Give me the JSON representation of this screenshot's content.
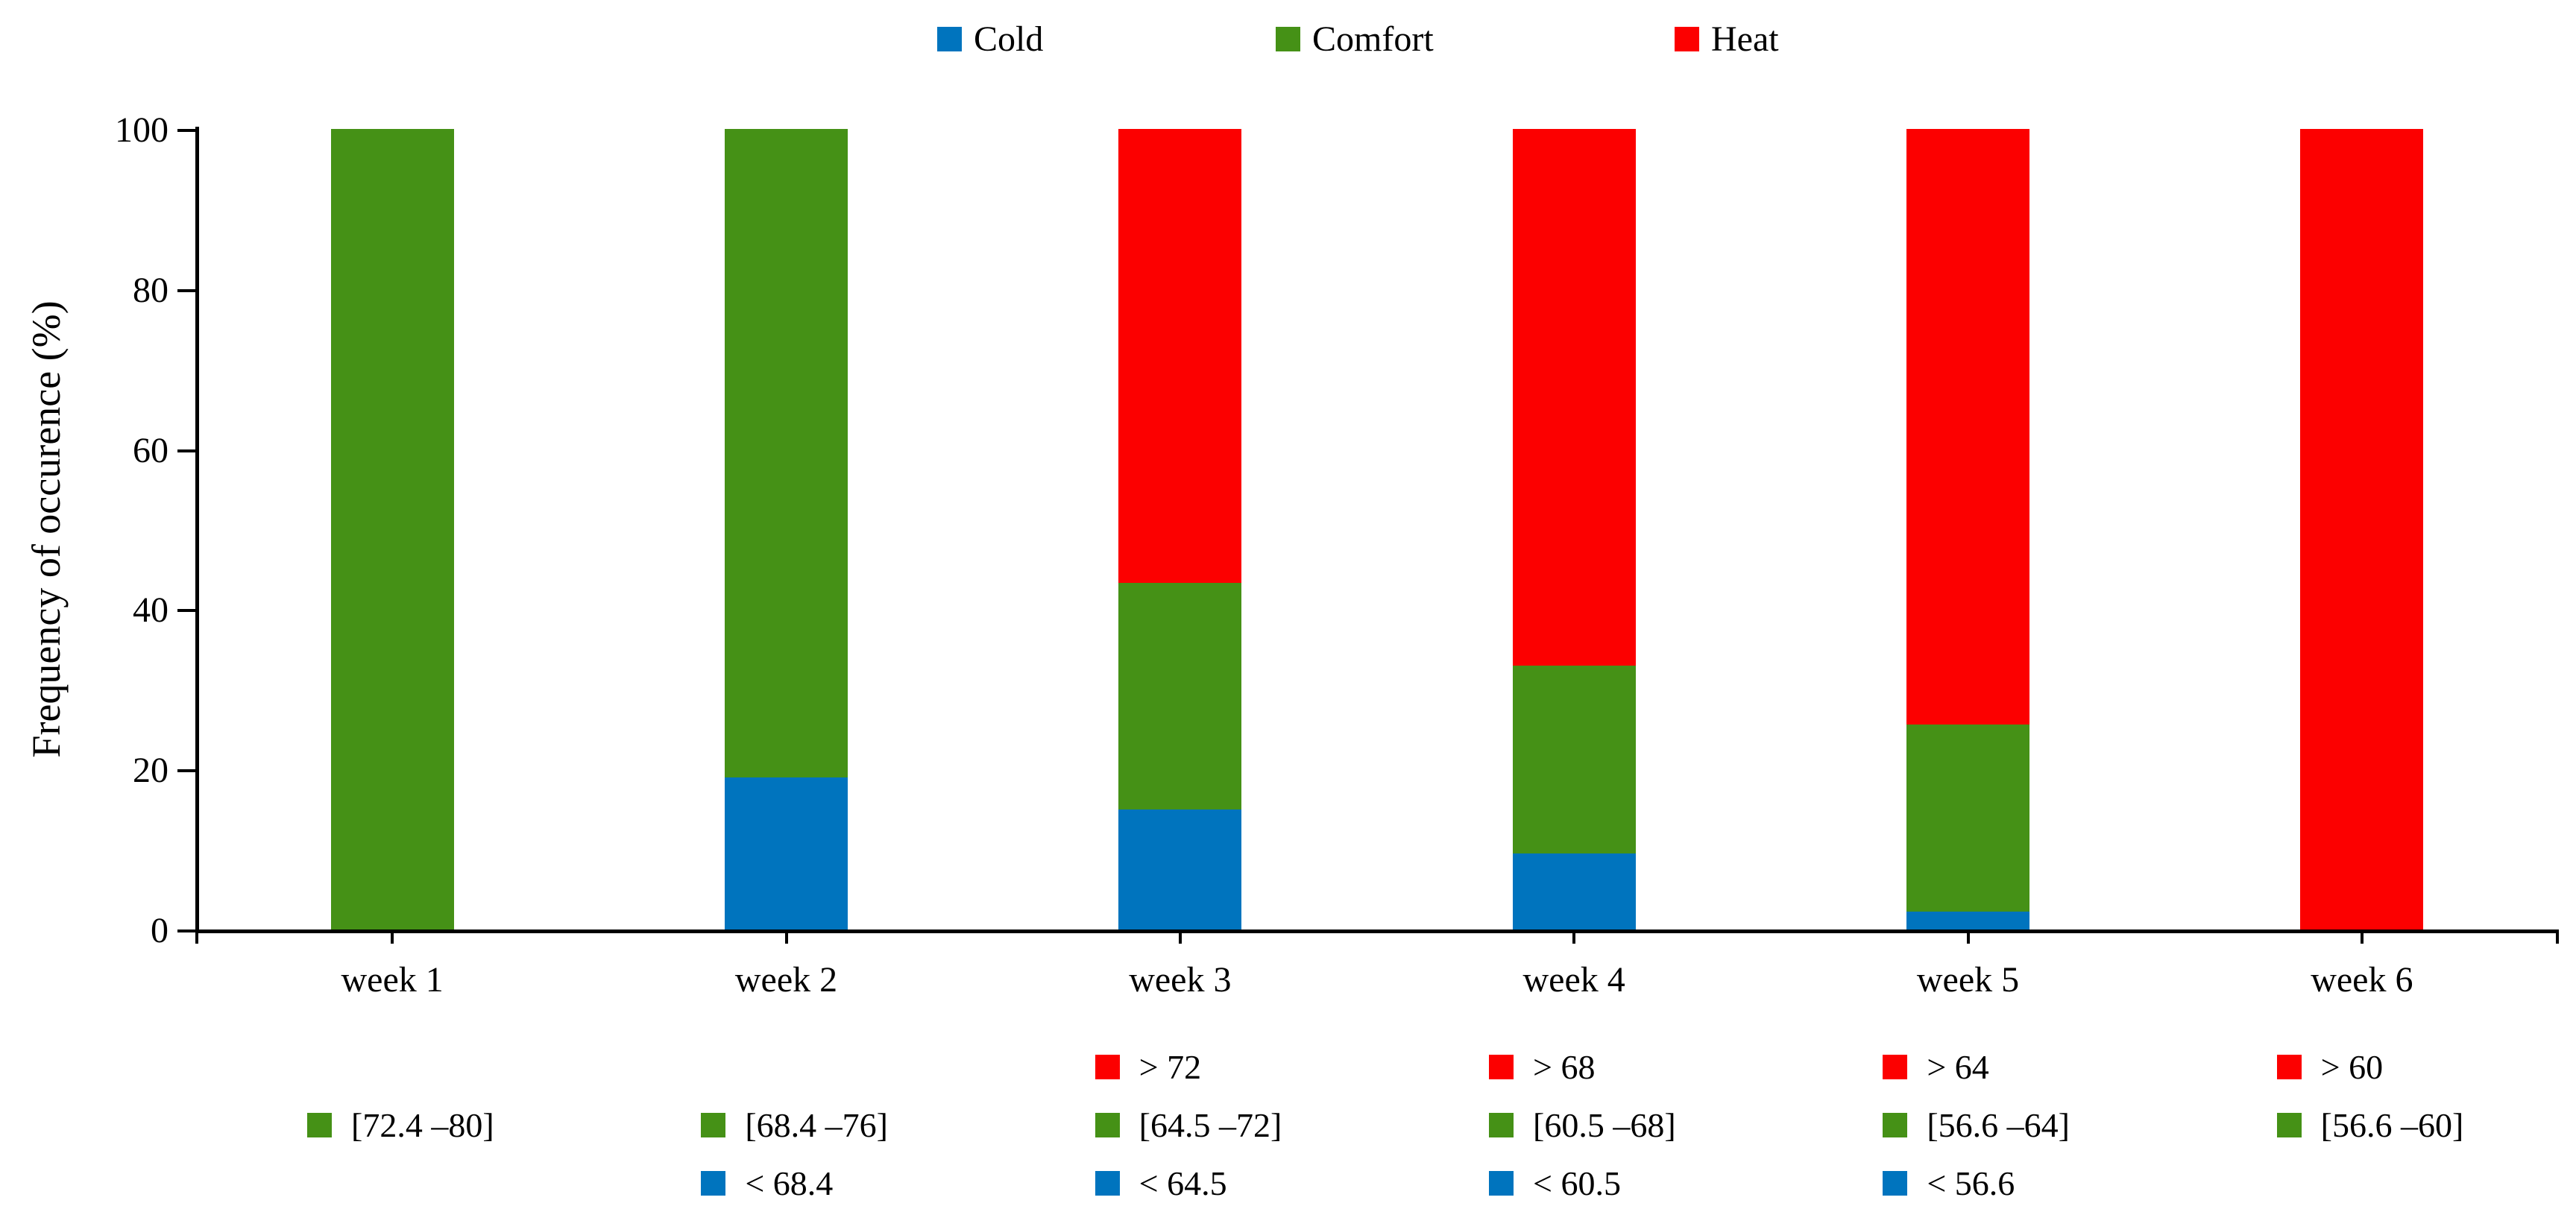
{
  "y_axis": {
    "title": "Frequency of occurence (%)",
    "ticks": [
      0,
      20,
      40,
      60,
      80,
      100
    ],
    "max": 100
  },
  "legend_top": {
    "items": [
      {
        "name": "Cold",
        "color": "#0074BE"
      },
      {
        "name": "Comfort",
        "color": "#459116"
      },
      {
        "name": "Heat",
        "color": "#FC0000"
      }
    ]
  },
  "chart_data": {
    "type": "bar",
    "stacked": true,
    "grid": false,
    "legend_position": "top",
    "categories": [
      "week 1",
      "week 2",
      "week 3",
      "week 4",
      "week 5",
      "week 6"
    ],
    "series": [
      {
        "name": "Cold",
        "color": "#0074BE",
        "values": [
          0,
          19,
          15,
          9.5,
          2.2,
          0
        ]
      },
      {
        "name": "Comfort",
        "color": "#459116",
        "values": [
          100,
          81,
          28.3,
          23.5,
          23.4,
          0
        ]
      },
      {
        "name": "Heat",
        "color": "#FC0000",
        "values": [
          0,
          0,
          56.7,
          67,
          74.4,
          100
        ]
      }
    ],
    "ylabel": "Frequency of occurence (%)",
    "ylim": [
      0,
      100
    ],
    "yticks": [
      0,
      20,
      40,
      60,
      80,
      100
    ]
  },
  "bottom_legend": {
    "columns": [
      {
        "week": "week 1",
        "entries": [
          {
            "series": "Comfort",
            "label": "[72.4 –80]"
          }
        ]
      },
      {
        "week": "week 2",
        "entries": [
          {
            "series": "Comfort",
            "label": "[68.4 –76]"
          },
          {
            "series": "Cold",
            "label": "< 68.4"
          }
        ]
      },
      {
        "week": "week 3",
        "entries": [
          {
            "series": "Heat",
            "label": "> 72"
          },
          {
            "series": "Comfort",
            "label": "[64.5 –72]"
          },
          {
            "series": "Cold",
            "label": "< 64.5"
          }
        ]
      },
      {
        "week": "week 4",
        "entries": [
          {
            "series": "Heat",
            "label": "> 68"
          },
          {
            "series": "Comfort",
            "label": "[60.5 –68]"
          },
          {
            "series": "Cold",
            "label": "< 60.5"
          }
        ]
      },
      {
        "week": "week 5",
        "entries": [
          {
            "series": "Heat",
            "label": "> 64"
          },
          {
            "series": "Comfort",
            "label": "[56.6 –64]"
          },
          {
            "series": "Cold",
            "label": "< 56.6"
          }
        ]
      },
      {
        "week": "week 6",
        "entries": [
          {
            "series": "Heat",
            "label": "> 60"
          },
          {
            "series": "Comfort",
            "label": "[56.6 –60]"
          }
        ]
      }
    ]
  }
}
